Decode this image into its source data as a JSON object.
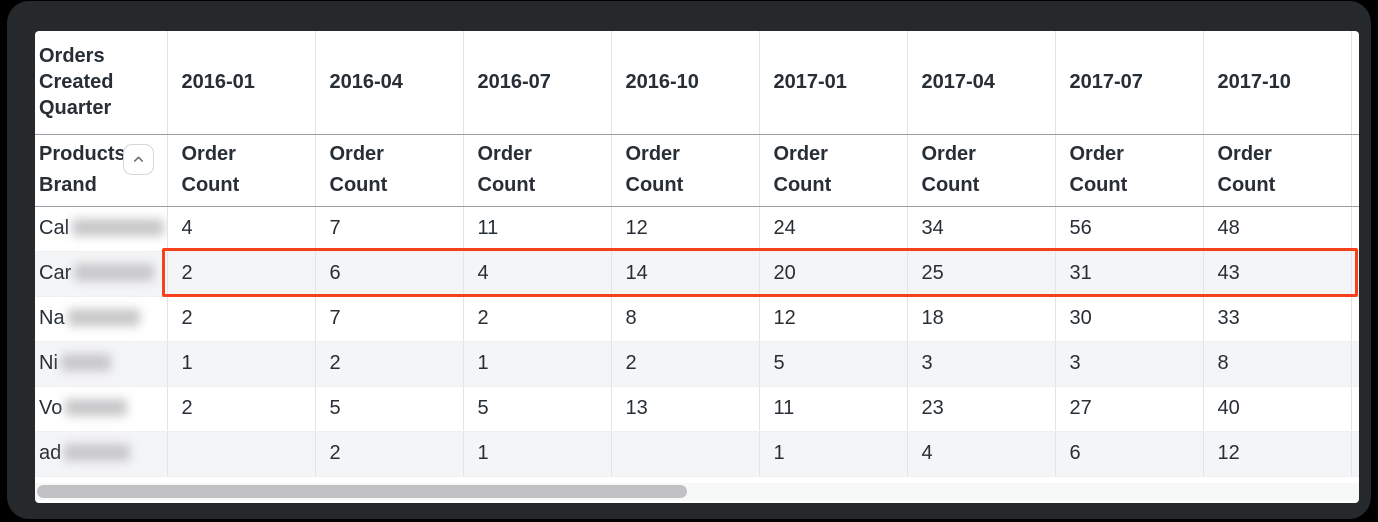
{
  "table": {
    "corner_header": "Orders Created Quarter",
    "row_dimension": {
      "label": "Products Brand",
      "sort_icon": "chevron-up"
    },
    "measure_label": "Order Count",
    "columns": [
      "2016-01",
      "2016-04",
      "2016-07",
      "2016-10",
      "2017-01",
      "2017-04",
      "2017-07",
      "2017-10"
    ],
    "rows": [
      {
        "brand_prefix": "Cal",
        "brand_redacted": true,
        "highlighted": false,
        "values": [
          "4",
          "7",
          "11",
          "12",
          "24",
          "34",
          "56",
          "48"
        ]
      },
      {
        "brand_prefix": "Car",
        "brand_redacted": true,
        "highlighted": true,
        "values": [
          "2",
          "6",
          "4",
          "14",
          "20",
          "25",
          "31",
          "43"
        ]
      },
      {
        "brand_prefix": "Na",
        "brand_redacted": true,
        "highlighted": false,
        "values": [
          "2",
          "7",
          "2",
          "8",
          "12",
          "18",
          "30",
          "33"
        ]
      },
      {
        "brand_prefix": "Ni",
        "brand_redacted": true,
        "highlighted": false,
        "values": [
          "1",
          "2",
          "1",
          "2",
          "5",
          "3",
          "3",
          "8"
        ]
      },
      {
        "brand_prefix": "Vo",
        "brand_redacted": true,
        "highlighted": false,
        "values": [
          "2",
          "5",
          "5",
          "13",
          "11",
          "23",
          "27",
          "40"
        ]
      },
      {
        "brand_prefix": "ad",
        "brand_redacted": true,
        "highlighted": false,
        "values": [
          "",
          "2",
          "1",
          "",
          "1",
          "4",
          "6",
          "12"
        ]
      }
    ],
    "highlight_color": "#f4431c"
  },
  "scrollbar": {
    "orientation": "horizontal"
  }
}
